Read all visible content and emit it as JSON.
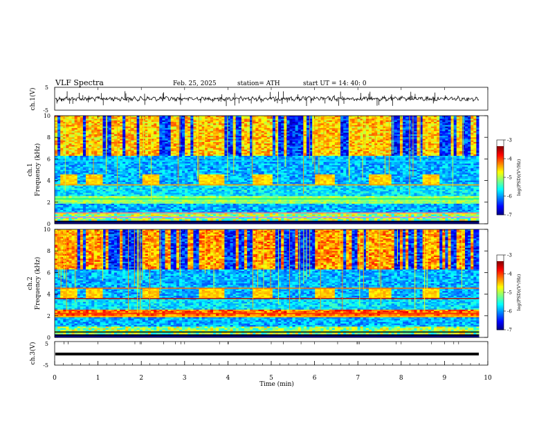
{
  "header": {
    "title": "VLF  Spectra",
    "date": "Feb. 25, 2025",
    "station": "station= ATH",
    "start_ut": "start  UT  =   14: 40: 0"
  },
  "chart_data": [
    {
      "type": "line",
      "panel": "ch1-waveform",
      "ylabel": "ch.1(V)",
      "ylim": [
        -5,
        5
      ],
      "yticks": [
        "5",
        "-5"
      ],
      "xlim": [
        0,
        10
      ]
    },
    {
      "type": "heatmap",
      "panel": "ch1-spectrogram",
      "ylabel": "ch.1\nFrequency  (kHz)",
      "ylabel_lines": [
        "ch.1",
        "Frequency  (kHz)"
      ],
      "ylim": [
        0,
        10
      ],
      "yticks": [
        "0",
        "2",
        "4",
        "6",
        "8",
        "10"
      ],
      "xlim": [
        0,
        10
      ],
      "colorbar": {
        "label": "log(PSD)(V²/Hz)",
        "range": [
          -7,
          -3
        ],
        "ticks": [
          "-3",
          "-4",
          "-5",
          "-6",
          "-7"
        ]
      },
      "blocks_4khz_start_min": [
        0.15,
        0.75,
        2.05,
        3.35,
        4.6,
        6.0,
        7.25,
        8.5
      ],
      "blocks_4khz_end_min": [
        0.5,
        1.1,
        2.4,
        3.9,
        5.0,
        6.5,
        7.8,
        8.9
      ]
    },
    {
      "type": "heatmap",
      "panel": "ch2-spectrogram",
      "ylabel": "ch.2\nFrequency  (kHz)",
      "ylabel_lines": [
        "ch.2",
        "Frequency  (kHz)"
      ],
      "ylim": [
        0,
        10
      ],
      "yticks": [
        "0",
        "2",
        "4",
        "6",
        "8",
        "10"
      ],
      "xlim": [
        0,
        10
      ],
      "colorbar": {
        "label": "log(PSD)(V²/Hz)",
        "range": [
          -7,
          -3
        ],
        "ticks": [
          "-3",
          "-4",
          "-5",
          "-6",
          "-7"
        ]
      }
    },
    {
      "type": "line",
      "panel": "ch3-waveform",
      "ylabel": "ch.3(V)",
      "ylim": [
        -5,
        5
      ],
      "yticks": [
        "5",
        "-5"
      ],
      "xlabel": "Time  (min)",
      "xlim": [
        0,
        10
      ],
      "xticks": [
        "0",
        "1",
        "2",
        "3",
        "4",
        "5",
        "6",
        "7",
        "8",
        "9",
        "10"
      ]
    }
  ]
}
